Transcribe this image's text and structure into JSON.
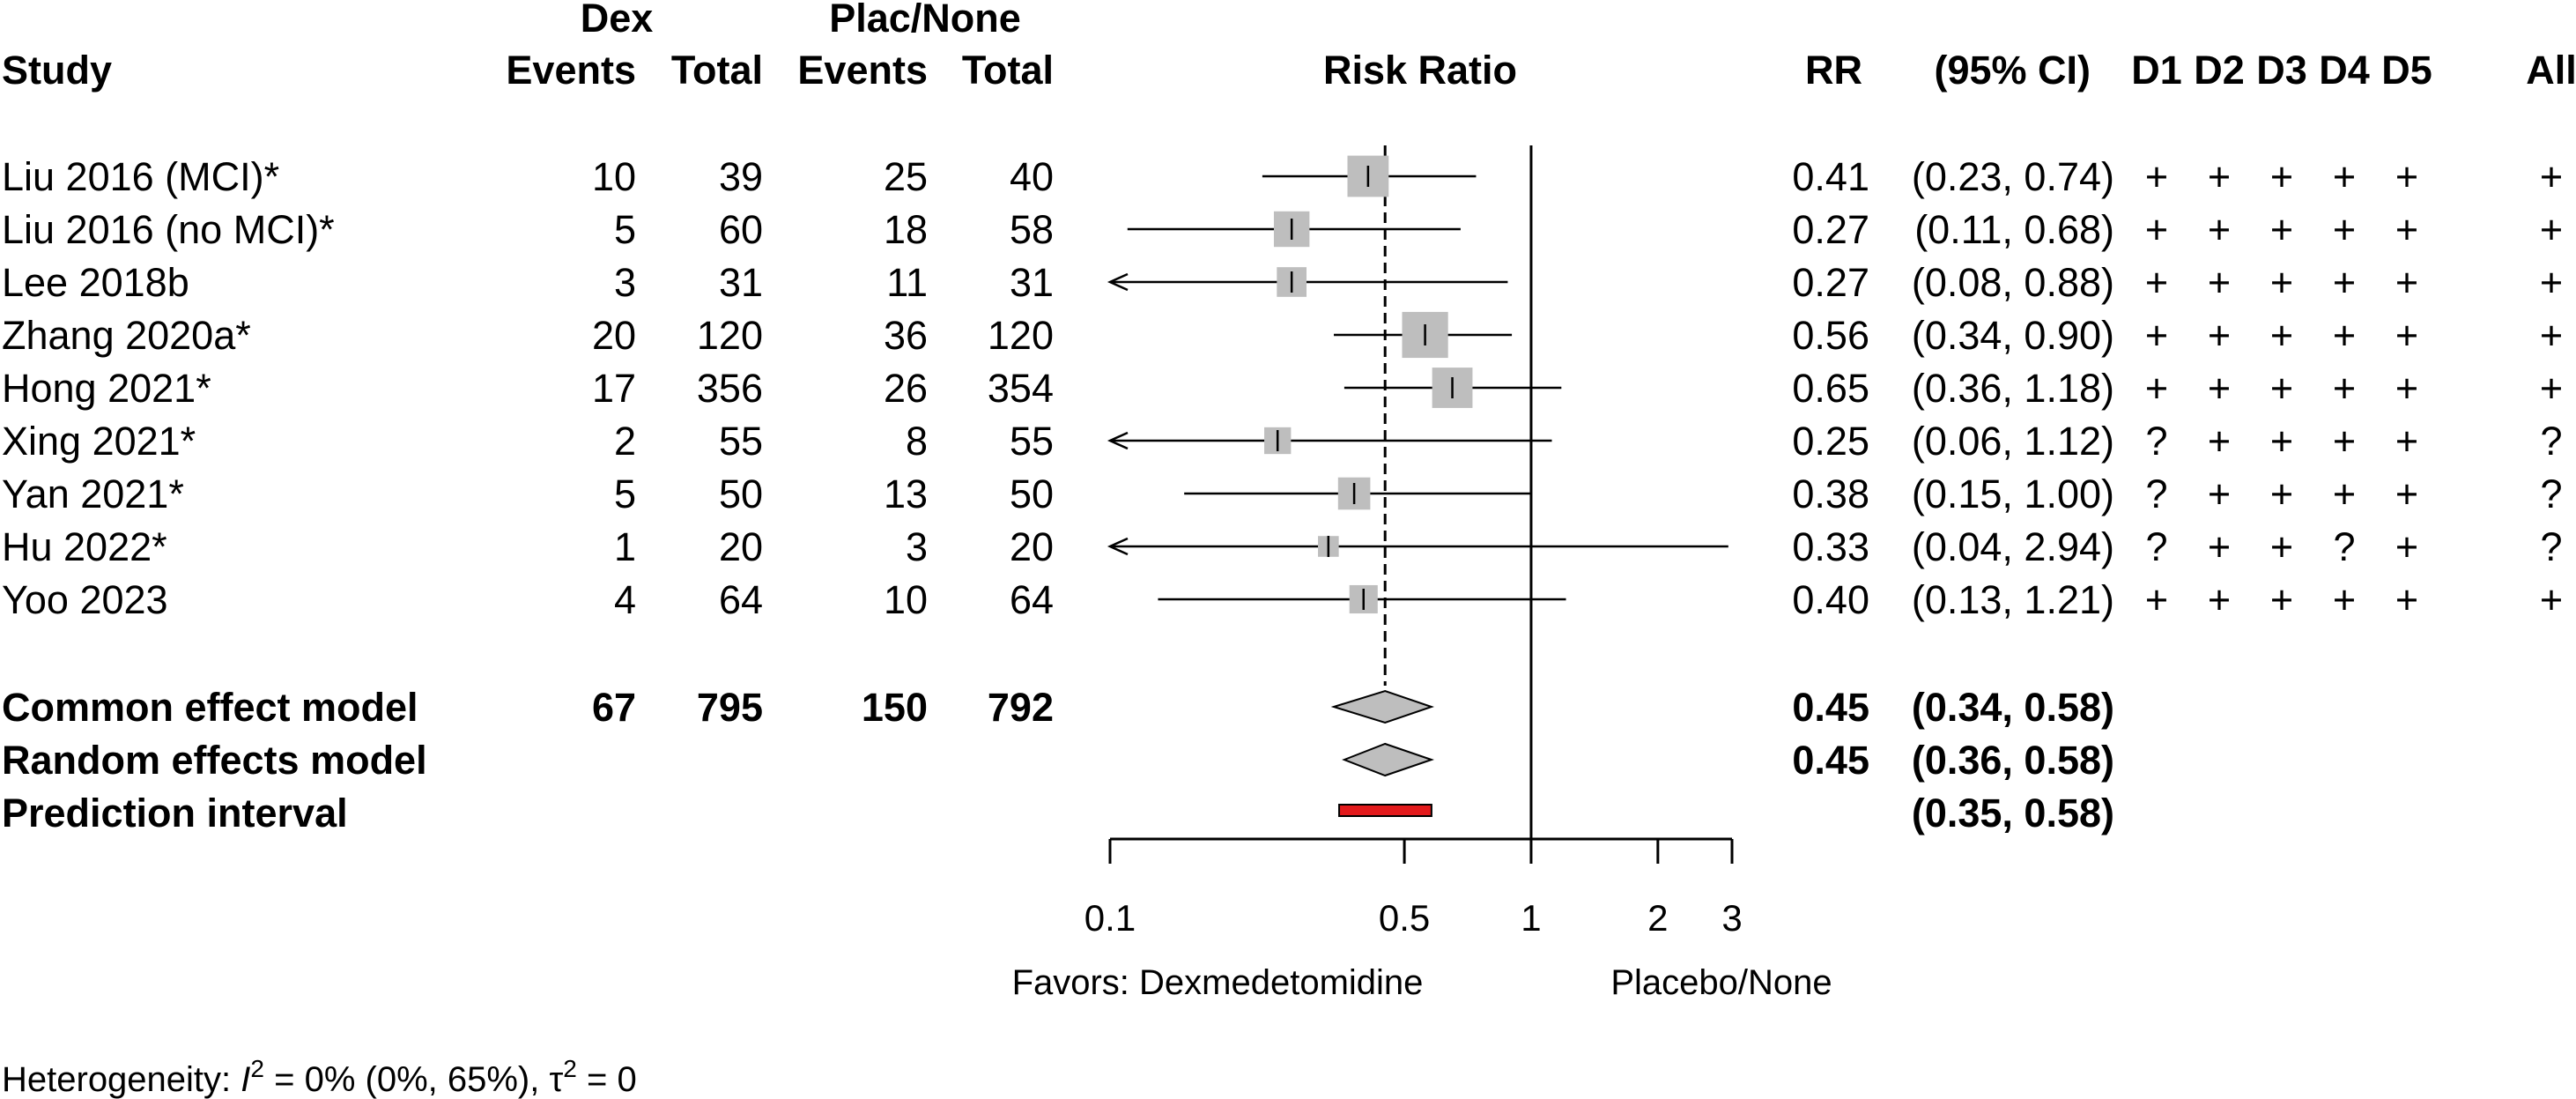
{
  "header": {
    "study_label": "Study",
    "group1_label": "Dex",
    "group2_label": "Plac/None",
    "events_label": "Events",
    "total_label": "Total",
    "risk_ratio_label": "Risk Ratio",
    "rr_label": "RR",
    "ci_label": "(95% CI)",
    "rob_labels": [
      "D1",
      "D2",
      "D3",
      "D4",
      "D5",
      "All"
    ]
  },
  "studies": [
    {
      "name": "Liu 2016 (MCI)*",
      "dex_events": "10",
      "dex_total": "39",
      "plac_events": "25",
      "plac_total": "40",
      "rr": "0.41",
      "ci": "(0.23, 0.74)",
      "rob": [
        "+",
        "+",
        "+",
        "+",
        "+",
        "+"
      ]
    },
    {
      "name": "Liu 2016 (no MCI)*",
      "dex_events": "5",
      "dex_total": "60",
      "plac_events": "18",
      "plac_total": "58",
      "rr": "0.27",
      "ci": "(0.11, 0.68)",
      "rob": [
        "+",
        "+",
        "+",
        "+",
        "+",
        "+"
      ]
    },
    {
      "name": "Lee 2018b",
      "dex_events": "3",
      "dex_total": "31",
      "plac_events": "11",
      "plac_total": "31",
      "rr": "0.27",
      "ci": "(0.08, 0.88)",
      "rob": [
        "+",
        "+",
        "+",
        "+",
        "+",
        "+"
      ]
    },
    {
      "name": "Zhang 2020a*",
      "dex_events": "20",
      "dex_total": "120",
      "plac_events": "36",
      "plac_total": "120",
      "rr": "0.56",
      "ci": "(0.34, 0.90)",
      "rob": [
        "+",
        "+",
        "+",
        "+",
        "+",
        "+"
      ]
    },
    {
      "name": "Hong 2021*",
      "dex_events": "17",
      "dex_total": "356",
      "plac_events": "26",
      "plac_total": "354",
      "rr": "0.65",
      "ci": "(0.36, 1.18)",
      "rob": [
        "+",
        "+",
        "+",
        "+",
        "+",
        "+"
      ]
    },
    {
      "name": "Xing 2021*",
      "dex_events": "2",
      "dex_total": "55",
      "plac_events": "8",
      "plac_total": "55",
      "rr": "0.25",
      "ci": "(0.06, 1.12)",
      "rob": [
        "?",
        "+",
        "+",
        "+",
        "+",
        "?"
      ]
    },
    {
      "name": "Yan 2021*",
      "dex_events": "5",
      "dex_total": "50",
      "plac_events": "13",
      "plac_total": "50",
      "rr": "0.38",
      "ci": "(0.15, 1.00)",
      "rob": [
        "?",
        "+",
        "+",
        "+",
        "+",
        "?"
      ]
    },
    {
      "name": "Hu 2022*",
      "dex_events": "1",
      "dex_total": "20",
      "plac_events": "3",
      "plac_total": "20",
      "rr": "0.33",
      "ci": "(0.04, 2.94)",
      "rob": [
        "?",
        "+",
        "+",
        "?",
        "+",
        "?"
      ]
    },
    {
      "name": "Yoo 2023",
      "dex_events": "4",
      "dex_total": "64",
      "plac_events": "10",
      "plac_total": "64",
      "rr": "0.40",
      "ci": "(0.13, 1.21)",
      "rob": [
        "+",
        "+",
        "+",
        "+",
        "+",
        "+"
      ]
    }
  ],
  "pooled": {
    "common": {
      "name": "Common effect model",
      "dex_events": "67",
      "dex_total": "795",
      "plac_events": "150",
      "plac_total": "792",
      "rr": "0.45",
      "ci": "(0.34, 0.58)"
    },
    "random": {
      "name": "Random effects model",
      "rr": "0.45",
      "ci": "(0.36, 0.58)"
    },
    "prediction": {
      "name": "Prediction interval",
      "ci": "(0.35, 0.58)"
    }
  },
  "axis": {
    "ticks": [
      "0.1",
      "0.5",
      "1",
      "2",
      "3"
    ],
    "favors_left": "Favors: Dexmedetomidine",
    "favors_right": "Placebo/None"
  },
  "heterogeneity": {
    "prefix": "Heterogeneity: ",
    "i_symbol": "I",
    "i_power": "2",
    "i_value": " = 0% (0%, 65%), ",
    "tau_symbol": "τ",
    "tau_power": "2",
    "tau_value": " = 0"
  },
  "colors": {
    "square": "#bebebe",
    "diamond": "#bebebe",
    "prediction_bar": "#e31a1c",
    "line": "#000000"
  },
  "chart_data": {
    "type": "forest",
    "scale": "log",
    "xlim": [
      0.1,
      3
    ],
    "x_ticks": [
      0.1,
      0.5,
      1,
      2,
      3
    ],
    "reference_line": 1,
    "pooled_reference": 0.45,
    "studies": [
      {
        "name": "Liu 2016 (MCI)*",
        "rr": 0.41,
        "lower": 0.23,
        "upper": 0.74,
        "weight": 0.18
      },
      {
        "name": "Liu 2016 (no MCI)*",
        "rr": 0.27,
        "lower": 0.11,
        "upper": 0.68,
        "weight": 0.12
      },
      {
        "name": "Lee 2018b",
        "rr": 0.27,
        "lower": 0.08,
        "upper": 0.88,
        "weight": 0.07
      },
      {
        "name": "Zhang 2020a*",
        "rr": 0.56,
        "lower": 0.34,
        "upper": 0.9,
        "weight": 0.24
      },
      {
        "name": "Hong 2021*",
        "rr": 0.65,
        "lower": 0.36,
        "upper": 1.18,
        "weight": 0.17
      },
      {
        "name": "Xing 2021*",
        "rr": 0.25,
        "lower": 0.06,
        "upper": 1.12,
        "weight": 0.05
      },
      {
        "name": "Yan 2021*",
        "rr": 0.38,
        "lower": 0.15,
        "upper": 1.0,
        "weight": 0.09
      },
      {
        "name": "Hu 2022*",
        "rr": 0.33,
        "lower": 0.04,
        "upper": 2.94,
        "weight": 0.02
      },
      {
        "name": "Yoo 2023",
        "rr": 0.4,
        "lower": 0.13,
        "upper": 1.21,
        "weight": 0.06
      }
    ],
    "pooled": [
      {
        "name": "Common effect model",
        "rr": 0.45,
        "lower": 0.34,
        "upper": 0.58
      },
      {
        "name": "Random effects model",
        "rr": 0.45,
        "lower": 0.36,
        "upper": 0.58
      }
    ],
    "prediction_interval": {
      "lower": 0.35,
      "upper": 0.58
    }
  }
}
